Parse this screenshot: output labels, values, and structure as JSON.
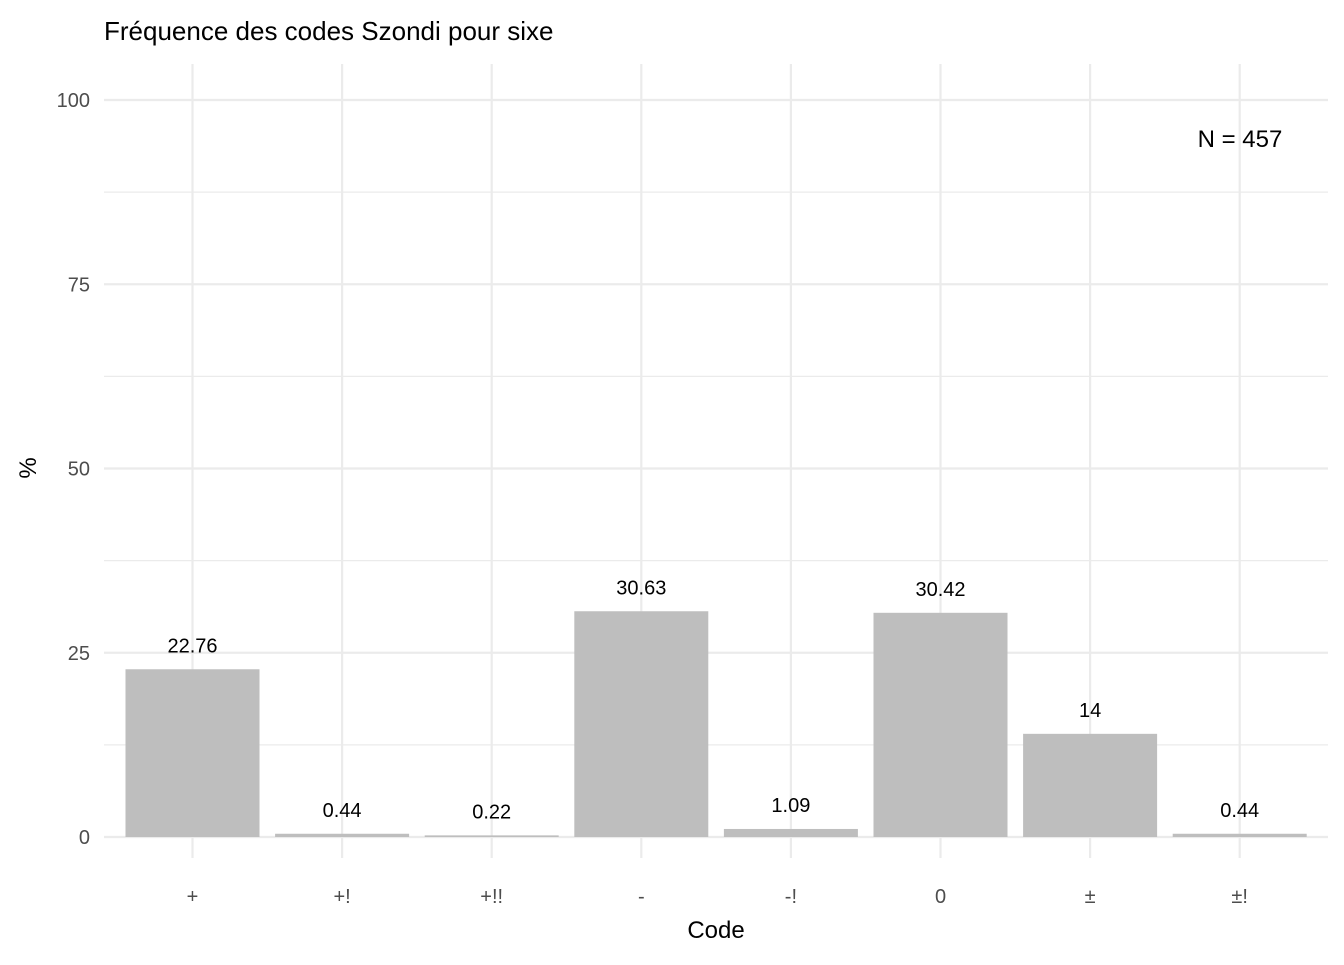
{
  "chart_data": {
    "type": "bar",
    "title": "Fréquence des codes Szondi pour sixe",
    "xlabel": "Code",
    "ylabel": "%",
    "categories": [
      "+",
      "+!",
      "+!!",
      "-",
      "-!",
      "0",
      "±",
      "±!"
    ],
    "values": [
      22.76,
      0.44,
      0.22,
      30.63,
      1.09,
      30.42,
      14,
      0.44
    ],
    "data_labels": [
      "22.76",
      "0.44",
      "0.22",
      "30.63",
      "1.09",
      "30.42",
      "14",
      "0.44"
    ],
    "ylim": [
      0,
      100
    ],
    "yticks": [
      0,
      25,
      50,
      75,
      100
    ],
    "yticks_minor": [
      12.5,
      37.5,
      62.5,
      87.5
    ],
    "grid": true,
    "legend": "none",
    "annotation": "N = 457",
    "bar_color": "#bebebe",
    "grid_color": "#ebebeb"
  }
}
